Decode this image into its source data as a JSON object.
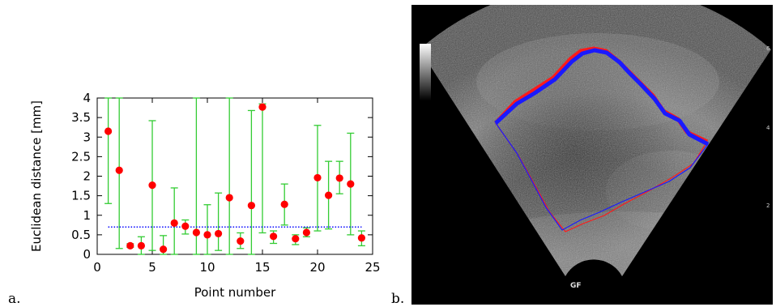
{
  "panels": {
    "a_label": "a.",
    "b_label": "b."
  },
  "chart_data": {
    "type": "scatter",
    "title": "",
    "xlabel": "Point number",
    "ylabel": "Euclidean distance [mm]",
    "xlim": [
      0,
      25
    ],
    "ylim": [
      0,
      4
    ],
    "xticks": [
      0,
      5,
      10,
      15,
      20,
      25
    ],
    "yticks": [
      0,
      0.5,
      1,
      1.5,
      2,
      2.5,
      3,
      3.5,
      4
    ],
    "ytick_labels": [
      "0",
      "0.5",
      "1",
      "1.5",
      "2",
      "2.5",
      "3",
      "3.5",
      "4"
    ],
    "grid": false,
    "legend": "none",
    "colors": {
      "points": "#ff0000",
      "errorbars": "#33cc33",
      "reference": "#0000ff"
    },
    "reference_line": {
      "y": 0.7,
      "x_range": [
        1,
        24
      ],
      "style": "dotted"
    },
    "points": [
      {
        "x": 1,
        "y": 3.15,
        "low": 1.3,
        "high": 4.0
      },
      {
        "x": 2,
        "y": 2.15,
        "low": 0.15,
        "high": 4.0
      },
      {
        "x": 3,
        "y": 0.22,
        "low": 0.18,
        "high": 0.27
      },
      {
        "x": 4,
        "y": 0.22,
        "low": 0.0,
        "high": 0.45
      },
      {
        "x": 5,
        "y": 1.77,
        "low": 0.1,
        "high": 3.42
      },
      {
        "x": 6,
        "y": 0.13,
        "low": 0.0,
        "high": 0.48
      },
      {
        "x": 7,
        "y": 0.8,
        "low": 0.0,
        "high": 1.7
      },
      {
        "x": 8,
        "y": 0.72,
        "low": 0.52,
        "high": 0.88
      },
      {
        "x": 9,
        "y": 0.56,
        "low": 0.0,
        "high": 4.0
      },
      {
        "x": 10,
        "y": 0.5,
        "low": 0.0,
        "high": 1.27
      },
      {
        "x": 11,
        "y": 0.53,
        "low": 0.1,
        "high": 1.57
      },
      {
        "x": 12,
        "y": 1.45,
        "low": 0.0,
        "high": 4.0
      },
      {
        "x": 13,
        "y": 0.34,
        "low": 0.15,
        "high": 0.55
      },
      {
        "x": 14,
        "y": 1.25,
        "low": 0.0,
        "high": 3.68
      },
      {
        "x": 15,
        "y": 3.77,
        "low": 0.55,
        "high": 3.85
      },
      {
        "x": 16,
        "y": 0.46,
        "low": 0.28,
        "high": 0.6
      },
      {
        "x": 17,
        "y": 1.28,
        "low": 0.75,
        "high": 1.8
      },
      {
        "x": 18,
        "y": 0.4,
        "low": 0.25,
        "high": 0.5
      },
      {
        "x": 19,
        "y": 0.56,
        "low": 0.45,
        "high": 0.68
      },
      {
        "x": 20,
        "y": 1.96,
        "low": 0.6,
        "high": 3.3
      },
      {
        "x": 21,
        "y": 1.51,
        "low": 0.65,
        "high": 2.38
      },
      {
        "x": 22,
        "y": 1.95,
        "low": 1.55,
        "high": 2.38
      },
      {
        "x": 23,
        "y": 1.8,
        "low": 0.5,
        "high": 3.1
      },
      {
        "x": 24,
        "y": 0.42,
        "low": 0.22,
        "high": 0.6
      }
    ]
  },
  "ultrasound": {
    "contour_colors": {
      "expert": "#ff1a1a",
      "automatic": "#1a1aff"
    },
    "depth_marks": [
      "6",
      "4",
      "2"
    ],
    "probe_marker": "GF"
  }
}
